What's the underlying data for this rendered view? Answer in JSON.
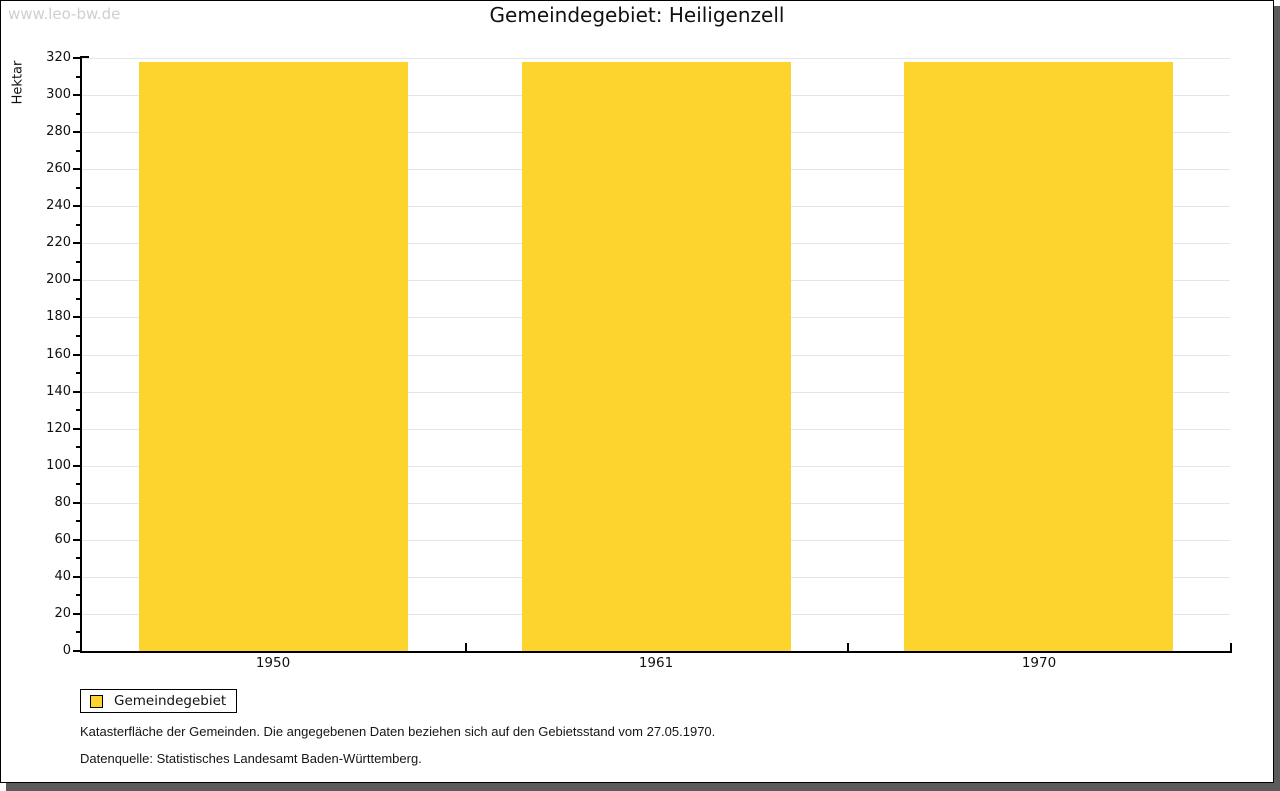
{
  "watermark": "www.leo-bw.de",
  "title": "Gemeindegebiet: Heiligenzell",
  "chart_data": {
    "type": "bar",
    "categories": [
      "1950",
      "1961",
      "1970"
    ],
    "series": [
      {
        "name": "Gemeindegebiet",
        "values": [
          318,
          318,
          318
        ]
      }
    ],
    "title": "Gemeindegebiet: Heiligenzell",
    "xlabel": "",
    "ylabel": "Hektar",
    "ylim": [
      0,
      320
    ],
    "ytick_major_step": 20,
    "ytick_minor_step": 10,
    "grid": true,
    "bar_color": "#FDD32E",
    "legend_position": "bottom-left"
  },
  "legend": {
    "items": [
      {
        "label": "Gemeindegebiet",
        "color": "#FDD32E"
      }
    ]
  },
  "footnotes": [
    "Katasterfläche der Gemeinden. Die angegebenen Daten beziehen sich auf den Gebietsstand vom 27.05.1970.",
    "Datenquelle: Statistisches Landesamt Baden-Württemberg."
  ],
  "frame": {
    "shadow_color": "#5c5c5c",
    "border_color": "#000000",
    "watermark_color": "#cfcfcf"
  }
}
